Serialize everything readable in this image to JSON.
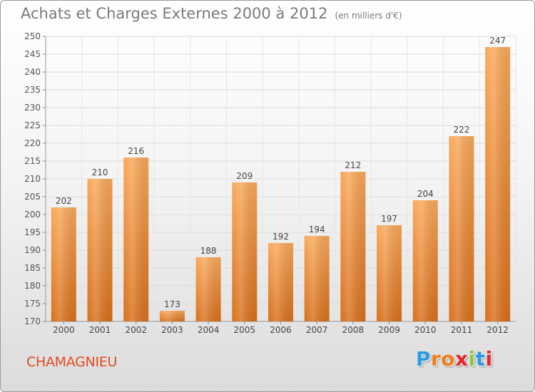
{
  "title": "Achats et Charges Externes 2000 à 2012",
  "unit_note": "(en milliers d'€)",
  "place": "CHAMAGNIEU",
  "logo": {
    "letters": [
      "P",
      "r",
      "o",
      "x",
      "i",
      "t",
      "i"
    ],
    "colors": [
      "#2e9be0",
      "#f07d1c",
      "#f07d1c",
      "#e8252a",
      "#8cc63f",
      "#2e9be0",
      "#e8252a"
    ]
  },
  "colors": {
    "bar_light": "#f9a85a",
    "bar_dark": "#d8701c",
    "title": "#7a7a7a",
    "place": "#e04a1e"
  },
  "chart_data": {
    "type": "bar",
    "title": "Achats et Charges Externes 2000 à 2012",
    "subtitle": "(en milliers d'€)",
    "categories": [
      "2000",
      "2001",
      "2002",
      "2003",
      "2004",
      "2005",
      "2006",
      "2007",
      "2008",
      "2009",
      "2010",
      "2011",
      "2012"
    ],
    "values": [
      202,
      210,
      216,
      173,
      188,
      209,
      192,
      194,
      212,
      197,
      204,
      222,
      247
    ],
    "ylim": [
      170,
      250
    ],
    "yticks": [
      170,
      175,
      180,
      185,
      190,
      195,
      200,
      205,
      210,
      215,
      220,
      225,
      230,
      235,
      240,
      245,
      250
    ],
    "grid": true,
    "data_labels": true
  }
}
